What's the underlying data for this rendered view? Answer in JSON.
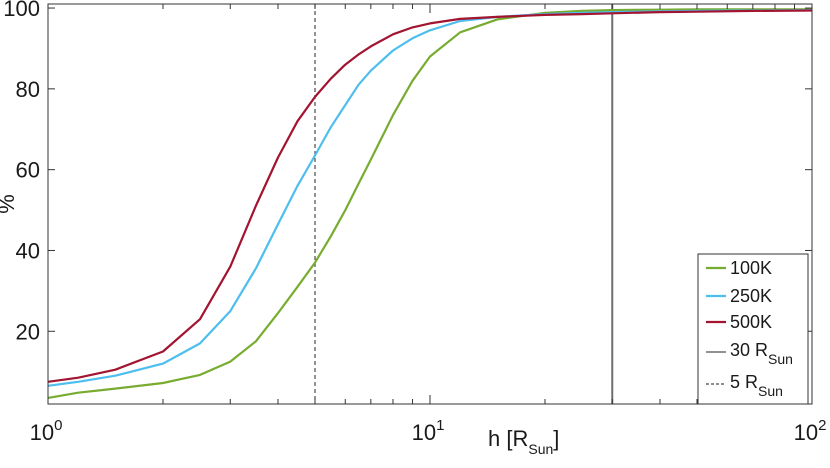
{
  "chart_data": {
    "type": "line",
    "xscale": "log",
    "xlim": [
      1,
      100
    ],
    "ylim": [
      2,
      101
    ],
    "x_ticks": [
      {
        "value": 1,
        "base": "10",
        "exp": "0"
      },
      {
        "value": 10,
        "base": "10",
        "exp": "1"
      },
      {
        "value": 100,
        "base": "10",
        "exp": "2"
      }
    ],
    "y_ticks": [
      20,
      40,
      60,
      80,
      100
    ],
    "xlabel": {
      "main": "h [R",
      "sub": "Sun",
      "end": "]"
    },
    "ylabel": "%",
    "grid": false,
    "legend_position": "bottom-right",
    "series": [
      {
        "name": "100K",
        "color": "#77ac30",
        "x": [
          1,
          1.2,
          1.5,
          2,
          2.5,
          3,
          3.5,
          4,
          4.5,
          5,
          5.5,
          6,
          6.5,
          7,
          8,
          9,
          10,
          12,
          15,
          20,
          25,
          30,
          40,
          50,
          70,
          100
        ],
        "y": [
          3.5,
          4.8,
          5.8,
          7.2,
          9.2,
          12.5,
          17.5,
          24.5,
          31,
          37,
          43.5,
          50,
          56.5,
          62.5,
          73.5,
          82,
          88,
          94,
          97.2,
          98.8,
          99.3,
          99.5,
          99.6,
          99.7,
          99.7,
          99.7
        ]
      },
      {
        "name": "250K",
        "color": "#4dbeee",
        "x": [
          1,
          1.2,
          1.5,
          2,
          2.5,
          3,
          3.5,
          4,
          4.5,
          5,
          5.5,
          6,
          6.5,
          7,
          8,
          9,
          10,
          12,
          15,
          20,
          25,
          30,
          40,
          50,
          70,
          100
        ],
        "y": [
          6.5,
          7.5,
          9,
          12,
          17,
          25,
          35.5,
          46.5,
          56,
          63.5,
          70.5,
          76,
          81,
          84.5,
          89.5,
          92.5,
          94.5,
          96.8,
          97.8,
          98.5,
          98.8,
          99,
          99.2,
          99.3,
          99.4,
          99.5
        ]
      },
      {
        "name": "500K",
        "color": "#a2142f",
        "x": [
          1,
          1.2,
          1.5,
          2,
          2.5,
          3,
          3.5,
          4,
          4.5,
          5,
          5.5,
          6,
          6.5,
          7,
          8,
          9,
          10,
          12,
          15,
          20,
          25,
          30,
          40,
          50,
          70,
          100
        ],
        "y": [
          7.5,
          8.5,
          10.5,
          15,
          23,
          36,
          51,
          63,
          72,
          78,
          82.5,
          86,
          88.5,
          90.5,
          93.5,
          95.2,
          96.2,
          97.3,
          97.8,
          98.3,
          98.5,
          98.7,
          99,
          99.1,
          99.3,
          99.4
        ]
      }
    ],
    "vlines": [
      {
        "x": 30,
        "style": "solid",
        "color": "#6e6e6e",
        "label_main": "30 R",
        "label_sub": "Sun"
      },
      {
        "x": 5,
        "style": "dashed",
        "color": "#4a4a4a",
        "label_main": "5 R",
        "label_sub": "Sun"
      }
    ]
  }
}
